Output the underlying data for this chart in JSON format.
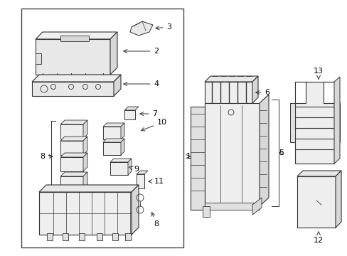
{
  "bg_color": "#ffffff",
  "line_color": "#333333",
  "text_color": "#000000",
  "fig_width": 4.89,
  "fig_height": 3.6,
  "dpi": 100
}
